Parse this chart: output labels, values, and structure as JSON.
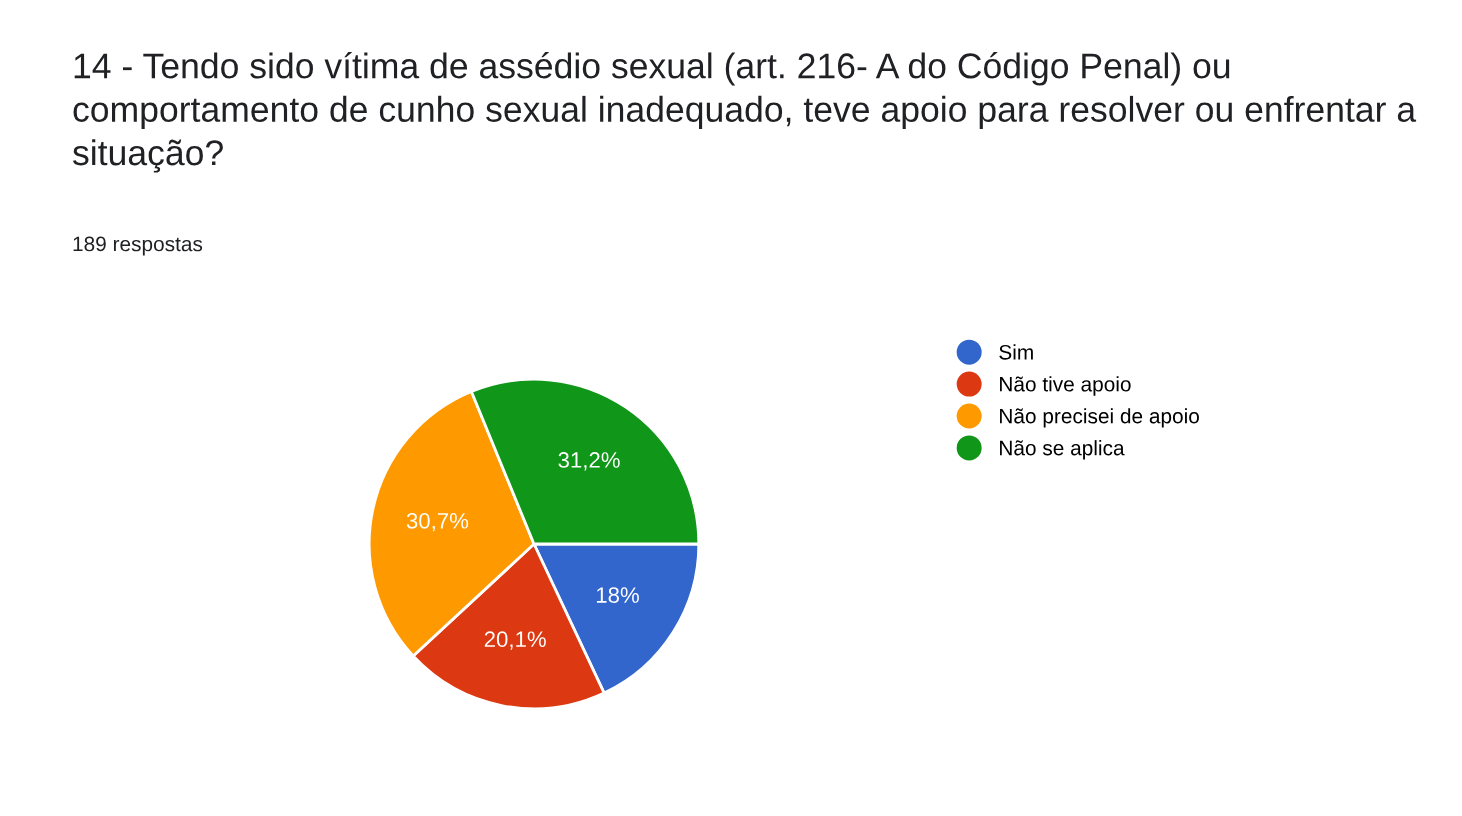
{
  "chart_data": {
    "type": "pie",
    "title": "14 - Tendo sido vítima de assédio sexual (art. 216- A do Código Penal) ou comportamento de cunho sexual inadequado, teve apoio para resolver ou enfrentar a situação?",
    "subtitle": "189 respostas",
    "categories": [
      "Sim",
      "Não tive apoio",
      "Não precisei de apoio",
      "Não se aplica"
    ],
    "values": [
      18,
      20.1,
      30.7,
      31.2
    ],
    "value_labels": [
      "18%",
      "20,1%",
      "30,7%",
      "31,2%"
    ],
    "colors": [
      "#3366cc",
      "#dc3912",
      "#ff9900",
      "#109618"
    ],
    "legend": "right"
  }
}
